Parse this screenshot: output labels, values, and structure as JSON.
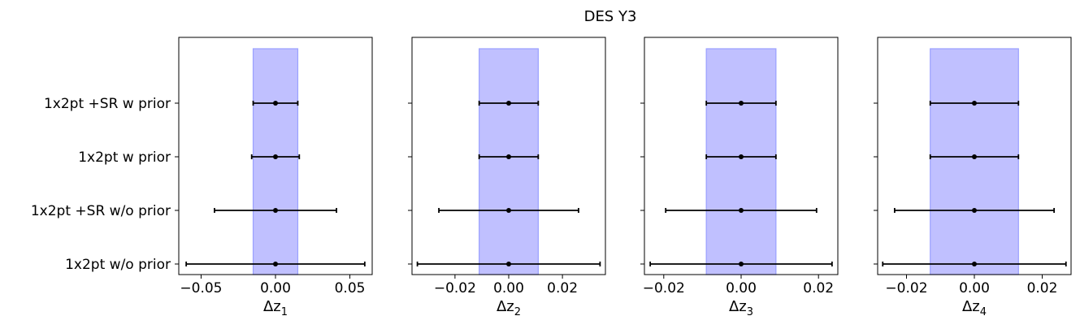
{
  "title": "DES Y3",
  "chart_data": {
    "type": "errorbar",
    "title": "DES Y3",
    "rows": [
      "1x2pt +SR w prior",
      "1x2pt w prior",
      "1x2pt +SR w/o prior",
      "1x2pt w/o prior"
    ],
    "band_color": "#c0c0ff",
    "band_edge_color": "#9aa0ff",
    "marker_color": "#000000",
    "panels": [
      {
        "xlabel": "Δz",
        "xlabel_sub": "1",
        "xlim": [
          -0.065,
          0.065
        ],
        "ticks": [
          -0.05,
          0.0,
          0.05
        ],
        "tick_labels": [
          "−0.05",
          "0.00",
          "0.05"
        ],
        "prior_band": [
          -0.015,
          0.015
        ],
        "points": [
          {
            "row": "1x2pt +SR w prior",
            "value": 0.0,
            "err": 0.015
          },
          {
            "row": "1x2pt w prior",
            "value": 0.0,
            "err": 0.016
          },
          {
            "row": "1x2pt +SR w/o prior",
            "value": 0.0,
            "err": 0.041
          },
          {
            "row": "1x2pt w/o prior",
            "value": 0.0,
            "err": 0.06
          }
        ]
      },
      {
        "xlabel": "Δz",
        "xlabel_sub": "2",
        "xlim": [
          -0.036,
          0.036
        ],
        "ticks": [
          -0.02,
          0.0,
          0.02
        ],
        "tick_labels": [
          "−0.02",
          "0.00",
          "0.02"
        ],
        "prior_band": [
          -0.011,
          0.011
        ],
        "points": [
          {
            "row": "1x2pt +SR w prior",
            "value": 0.0,
            "err": 0.011
          },
          {
            "row": "1x2pt w prior",
            "value": 0.0,
            "err": 0.011
          },
          {
            "row": "1x2pt +SR w/o prior",
            "value": 0.0,
            "err": 0.026
          },
          {
            "row": "1x2pt w/o prior",
            "value": 0.0,
            "err": 0.034
          }
        ]
      },
      {
        "xlabel": "Δz",
        "xlabel_sub": "3",
        "xlim": [
          -0.025,
          0.025
        ],
        "ticks": [
          -0.02,
          0.0,
          0.02
        ],
        "tick_labels": [
          "−0.02",
          "0.00",
          "0.02"
        ],
        "prior_band": [
          -0.009,
          0.009
        ],
        "points": [
          {
            "row": "1x2pt +SR w prior",
            "value": 0.0,
            "err": 0.009
          },
          {
            "row": "1x2pt w prior",
            "value": 0.0,
            "err": 0.009
          },
          {
            "row": "1x2pt +SR w/o prior",
            "value": 0.0,
            "err": 0.0195
          },
          {
            "row": "1x2pt w/o prior",
            "value": 0.0,
            "err": 0.0235
          }
        ]
      },
      {
        "xlabel": "Δz",
        "xlabel_sub": "4",
        "xlim": [
          -0.0285,
          0.0285
        ],
        "ticks": [
          -0.02,
          0.0,
          0.02
        ],
        "tick_labels": [
          "−0.02",
          "0.00",
          "0.02"
        ],
        "prior_band": [
          -0.013,
          0.013
        ],
        "points": [
          {
            "row": "1x2pt +SR w prior",
            "value": 0.0,
            "err": 0.013
          },
          {
            "row": "1x2pt w prior",
            "value": 0.0,
            "err": 0.013
          },
          {
            "row": "1x2pt +SR w/o prior",
            "value": 0.0,
            "err": 0.0235
          },
          {
            "row": "1x2pt w/o prior",
            "value": 0.0,
            "err": 0.027
          }
        ]
      }
    ]
  }
}
